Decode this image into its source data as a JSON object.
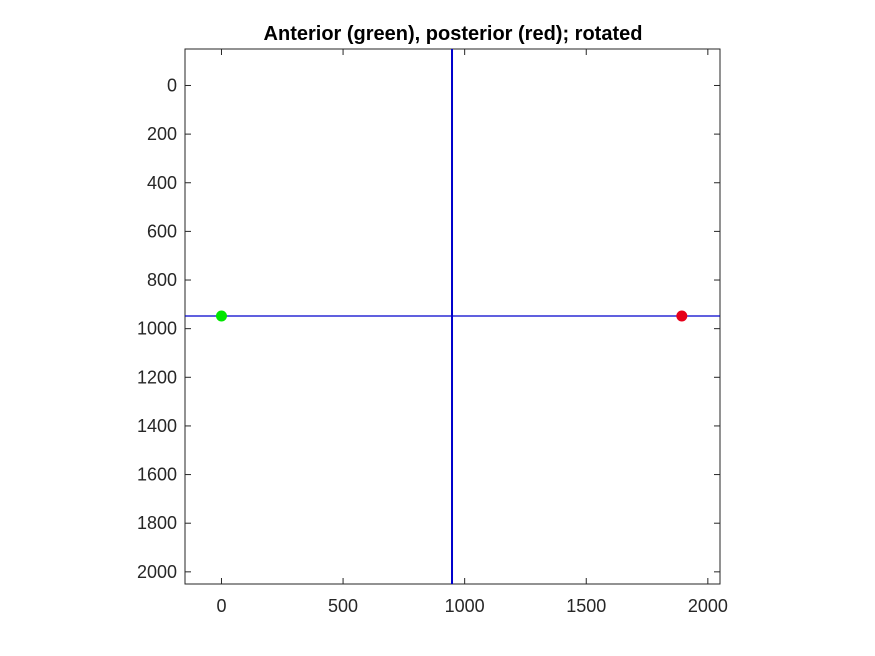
{
  "chart_data": {
    "type": "scatter",
    "title": "Anterior (green), posterior (red); rotated",
    "xlabel": "",
    "ylabel": "",
    "xlim": [
      -150,
      2050
    ],
    "ylim": [
      -150,
      2050
    ],
    "y_reversed": true,
    "grid": false,
    "x_ticks": [
      0,
      500,
      1000,
      1500,
      2000
    ],
    "y_ticks": [
      0,
      200,
      400,
      600,
      800,
      1000,
      1200,
      1400,
      1600,
      1800,
      2000
    ],
    "points": [
      {
        "x": 0,
        "y": 948,
        "color": "#00e600"
      },
      {
        "x": 1893,
        "y": 948,
        "color": "#e6001a"
      }
    ],
    "lines": [
      {
        "orientation": "vertical",
        "value": 948,
        "color": "#0000cc"
      },
      {
        "orientation": "horizontal",
        "value": 948,
        "color": "#0000cc"
      }
    ]
  }
}
